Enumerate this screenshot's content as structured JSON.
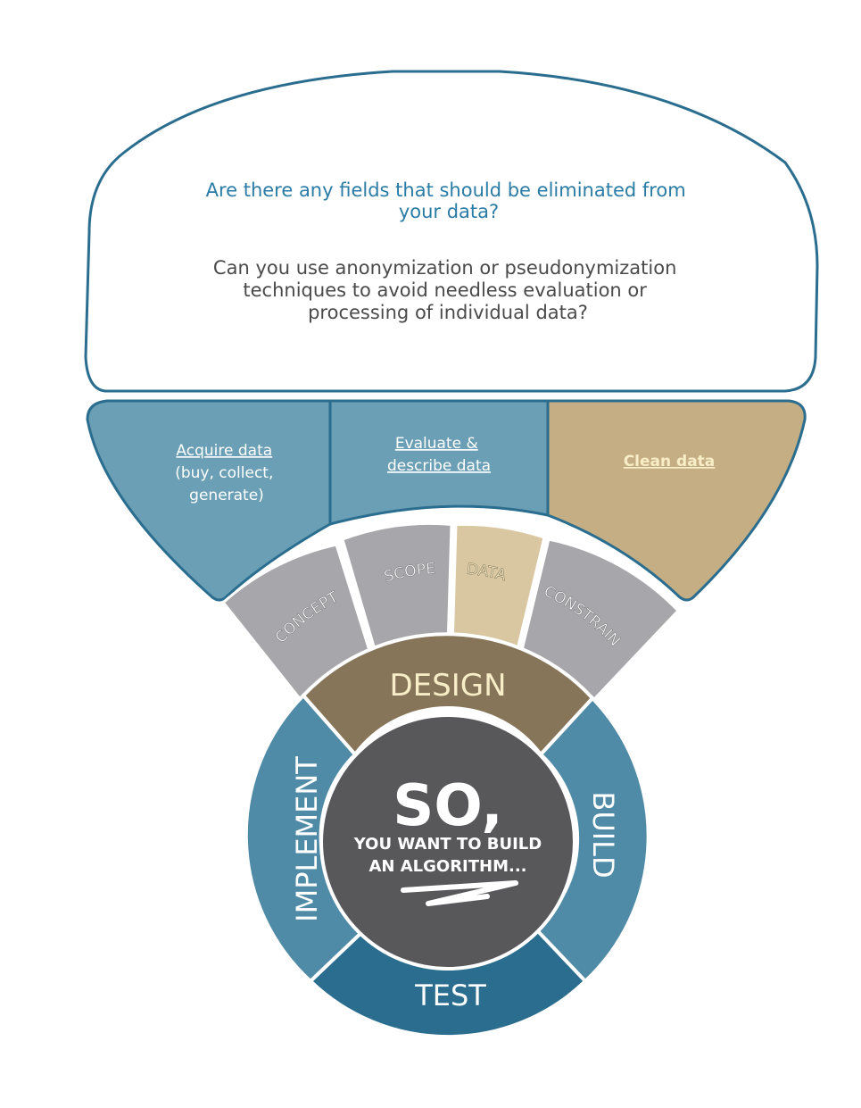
{
  "info_panel": {
    "question_lines": [
      "Are there any fields that should be eliminated from",
      "your data?"
    ],
    "detail_lines": [
      "Can you use anonymization or pseudonymization",
      "techniques to avoid needless evaluation or",
      "processing of individual data?"
    ]
  },
  "substeps": {
    "acquire_lines": [
      "Acquire data",
      "(buy, collect,",
      "generate)"
    ],
    "evaluate_lines": [
      "Evaluate &",
      "describe data"
    ],
    "clean_label": "Clean data"
  },
  "design_segments": {
    "concept": "CONCEPT",
    "scope": "SCOPE",
    "data": "DATA",
    "constrain": "CONSTRAIN"
  },
  "wheel": {
    "design": "DESIGN",
    "build": "BUILD",
    "test": "TEST",
    "implement": "IMPLEMENT"
  },
  "center": {
    "headline": "SO,",
    "line1": "YOU WANT TO BUILD",
    "line2": "AN ALGORITHM..."
  },
  "colors": {
    "teal_blue": "#6a9fb5",
    "dark_teal": "#2a6d8f",
    "wheel_blue": "#4f8aa6",
    "tan_active": "#c5ae84",
    "tan_light": "#d9c7a1",
    "gray_segment": "#a7a6aa",
    "design_brown": "#87755a",
    "center_gray": "#58585b",
    "question_blue": "#2a7ca6",
    "detail_dark": "#4a4a4a",
    "active_label": "#f7edc6"
  }
}
